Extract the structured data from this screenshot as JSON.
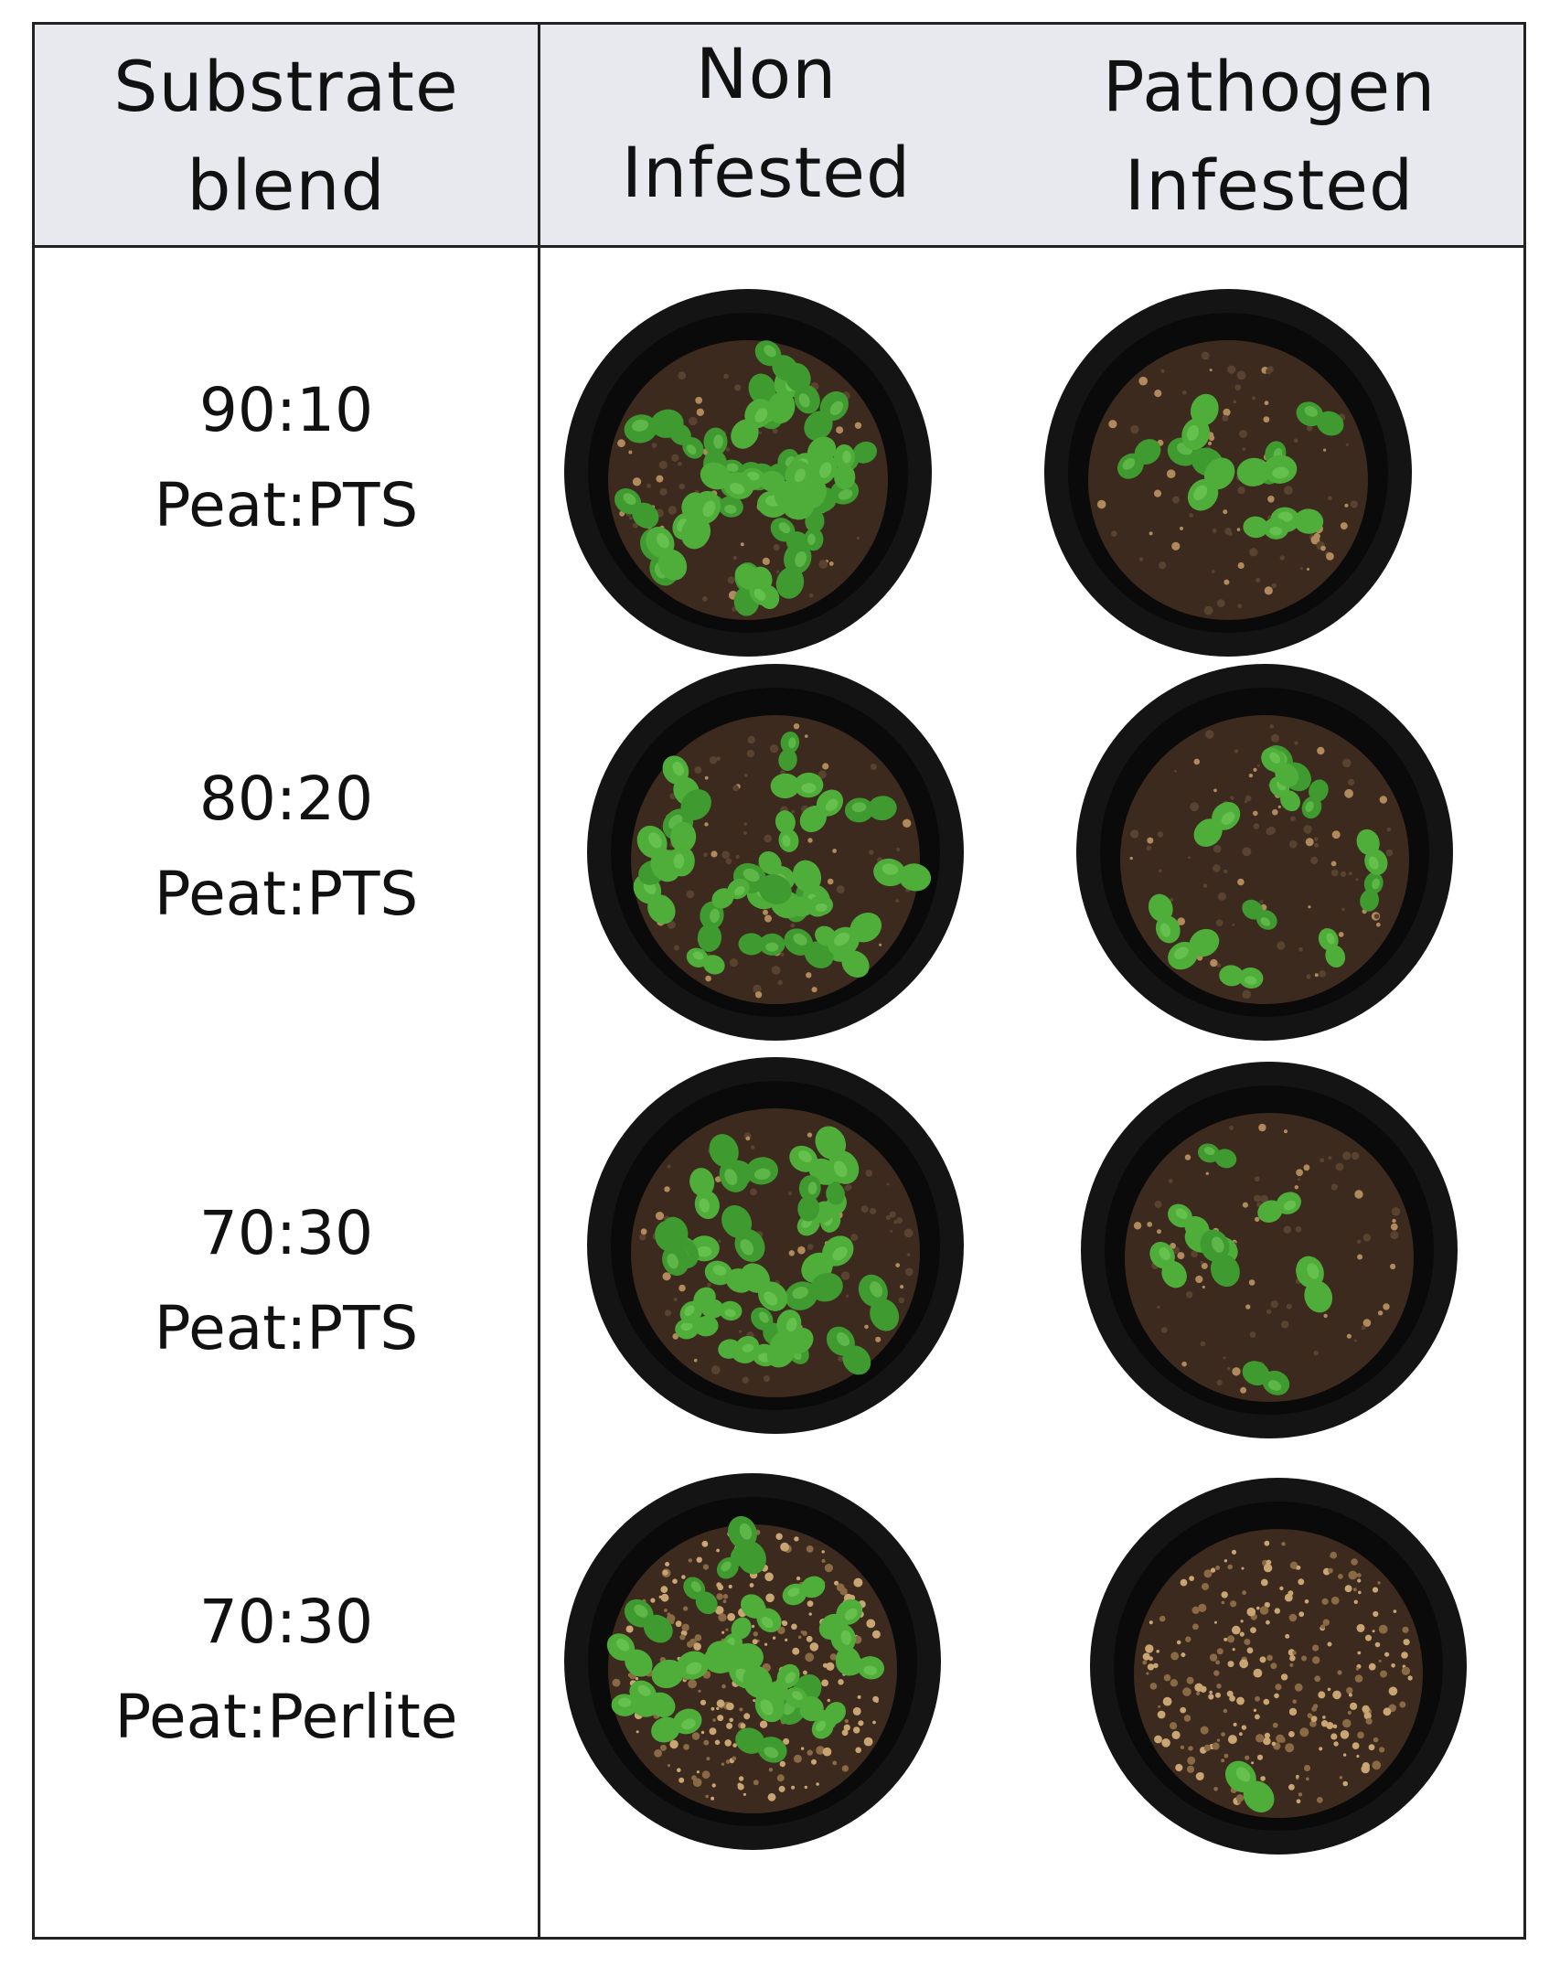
{
  "header": {
    "col1_line1": "Substrate",
    "col1_line2": "blend",
    "col2_line1": "Non",
    "col2_line2": "Infested",
    "col3_line1": "Pathogen",
    "col3_line2": "Infested"
  },
  "rows": [
    {
      "ratio": "90:10",
      "blend": "Peat:PTS"
    },
    {
      "ratio": "80:20",
      "blend": "Peat:PTS"
    },
    {
      "ratio": "70:30",
      "blend": "Peat:PTS"
    },
    {
      "ratio": "70:30",
      "blend": "Peat:Perlite"
    }
  ],
  "colors": {
    "header_bg": "#e8e9ee",
    "border": "#222222",
    "pot": "#141414",
    "soil": "#3b2a1d",
    "seedling": "#4fae3a"
  }
}
